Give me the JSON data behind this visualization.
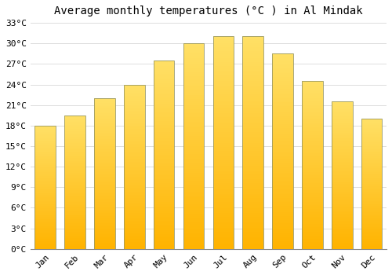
{
  "title": "Average monthly temperatures (°C ) in Al Mindak",
  "months": [
    "Jan",
    "Feb",
    "Mar",
    "Apr",
    "May",
    "Jun",
    "Jul",
    "Aug",
    "Sep",
    "Oct",
    "Nov",
    "Dec"
  ],
  "temperatures": [
    18,
    19.5,
    22,
    24,
    27.5,
    30,
    31,
    31,
    28.5,
    24.5,
    21.5,
    19
  ],
  "bar_color_bottom": "#FFB300",
  "bar_color_top": "#FFE066",
  "bar_edge_color": "#999966",
  "background_color": "#FFFFFF",
  "grid_color": "#DDDDDD",
  "ylim": [
    0,
    33
  ],
  "yticks": [
    0,
    3,
    6,
    9,
    12,
    15,
    18,
    21,
    24,
    27,
    30,
    33
  ],
  "title_fontsize": 10,
  "tick_fontsize": 8,
  "font_family": "monospace"
}
